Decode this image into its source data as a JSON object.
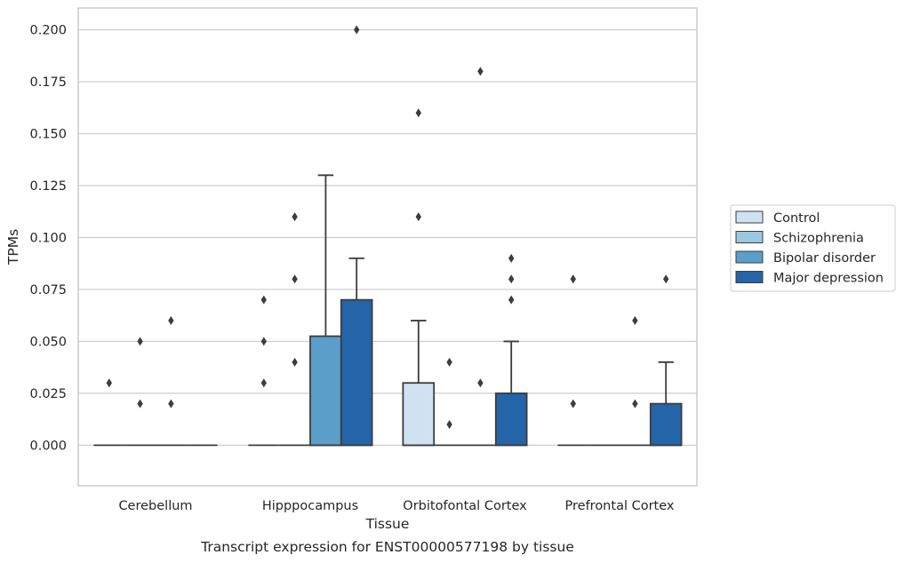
{
  "chart_data": {
    "type": "box",
    "caption": "Transcript expression for ENST00000577198 by tissue",
    "xlabel": "Tissue",
    "ylabel": "TPMs",
    "ylim": [
      -0.0195,
      0.2105
    ],
    "yticks": [
      "0.000",
      "0.025",
      "0.050",
      "0.075",
      "0.100",
      "0.125",
      "0.150",
      "0.175",
      "0.200"
    ],
    "grid": "horizontal",
    "legend_position": "right",
    "categories": [
      "Cerebellum",
      "Hipppocampus",
      "Orbitofontal Cortex",
      "Prefrontal Cortex"
    ],
    "series": [
      {
        "name": "Control",
        "color": "#d0e1f2",
        "boxes": [
          {
            "q1": 0,
            "median": 0,
            "q3": 0,
            "whisker_low": 0,
            "whisker_high": 0,
            "outliers": [
              0.03
            ]
          },
          {
            "q1": 0,
            "median": 0,
            "q3": 0,
            "whisker_low": 0,
            "whisker_high": 0,
            "outliers": [
              0.03,
              0.05,
              0.07
            ]
          },
          {
            "q1": 0,
            "median": 0,
            "q3": 0.03,
            "whisker_low": 0,
            "whisker_high": 0.06,
            "outliers": [
              0.11,
              0.16
            ]
          },
          {
            "q1": 0,
            "median": 0,
            "q3": 0,
            "whisker_low": 0,
            "whisker_high": 0,
            "outliers": [
              0.02,
              0.08
            ]
          }
        ]
      },
      {
        "name": "Schizophrenia",
        "color": "#9ac8e0",
        "boxes": [
          {
            "q1": 0,
            "median": 0,
            "q3": 0,
            "whisker_low": 0,
            "whisker_high": 0,
            "outliers": [
              0.02,
              0.05
            ]
          },
          {
            "q1": 0,
            "median": 0,
            "q3": 0,
            "whisker_low": 0,
            "whisker_high": 0,
            "outliers": [
              0.04,
              0.08,
              0.11
            ]
          },
          {
            "q1": 0,
            "median": 0,
            "q3": 0,
            "whisker_low": 0,
            "whisker_high": 0,
            "outliers": [
              0.01,
              0.04
            ]
          },
          {
            "q1": 0,
            "median": 0,
            "q3": 0,
            "whisker_low": 0,
            "whisker_high": 0,
            "outliers": []
          }
        ]
      },
      {
        "name": "Bipolar disorder",
        "color": "#5a9ec9",
        "boxes": [
          {
            "q1": 0,
            "median": 0,
            "q3": 0,
            "whisker_low": 0,
            "whisker_high": 0,
            "outliers": [
              0.02,
              0.06
            ]
          },
          {
            "q1": 0,
            "median": 0,
            "q3": 0.0525,
            "whisker_low": 0,
            "whisker_high": 0.13,
            "outliers": []
          },
          {
            "q1": 0,
            "median": 0,
            "q3": 0,
            "whisker_low": 0,
            "whisker_high": 0,
            "outliers": [
              0.03,
              0.18
            ]
          },
          {
            "q1": 0,
            "median": 0,
            "q3": 0,
            "whisker_low": 0,
            "whisker_high": 0,
            "outliers": [
              0.02,
              0.06
            ]
          }
        ]
      },
      {
        "name": "Major depression",
        "color": "#2464a8",
        "boxes": [
          {
            "q1": 0,
            "median": 0,
            "q3": 0,
            "whisker_low": 0,
            "whisker_high": 0,
            "outliers": []
          },
          {
            "q1": 0,
            "median": 0,
            "q3": 0.07,
            "whisker_low": 0,
            "whisker_high": 0.09,
            "outliers": [
              0.2
            ]
          },
          {
            "q1": 0,
            "median": 0,
            "q3": 0.025,
            "whisker_low": 0,
            "whisker_high": 0.05,
            "outliers": [
              0.07,
              0.08,
              0.09
            ]
          },
          {
            "q1": 0,
            "median": 0,
            "q3": 0.02,
            "whisker_low": 0,
            "whisker_high": 0.04,
            "outliers": [
              0.08
            ]
          }
        ]
      }
    ]
  }
}
